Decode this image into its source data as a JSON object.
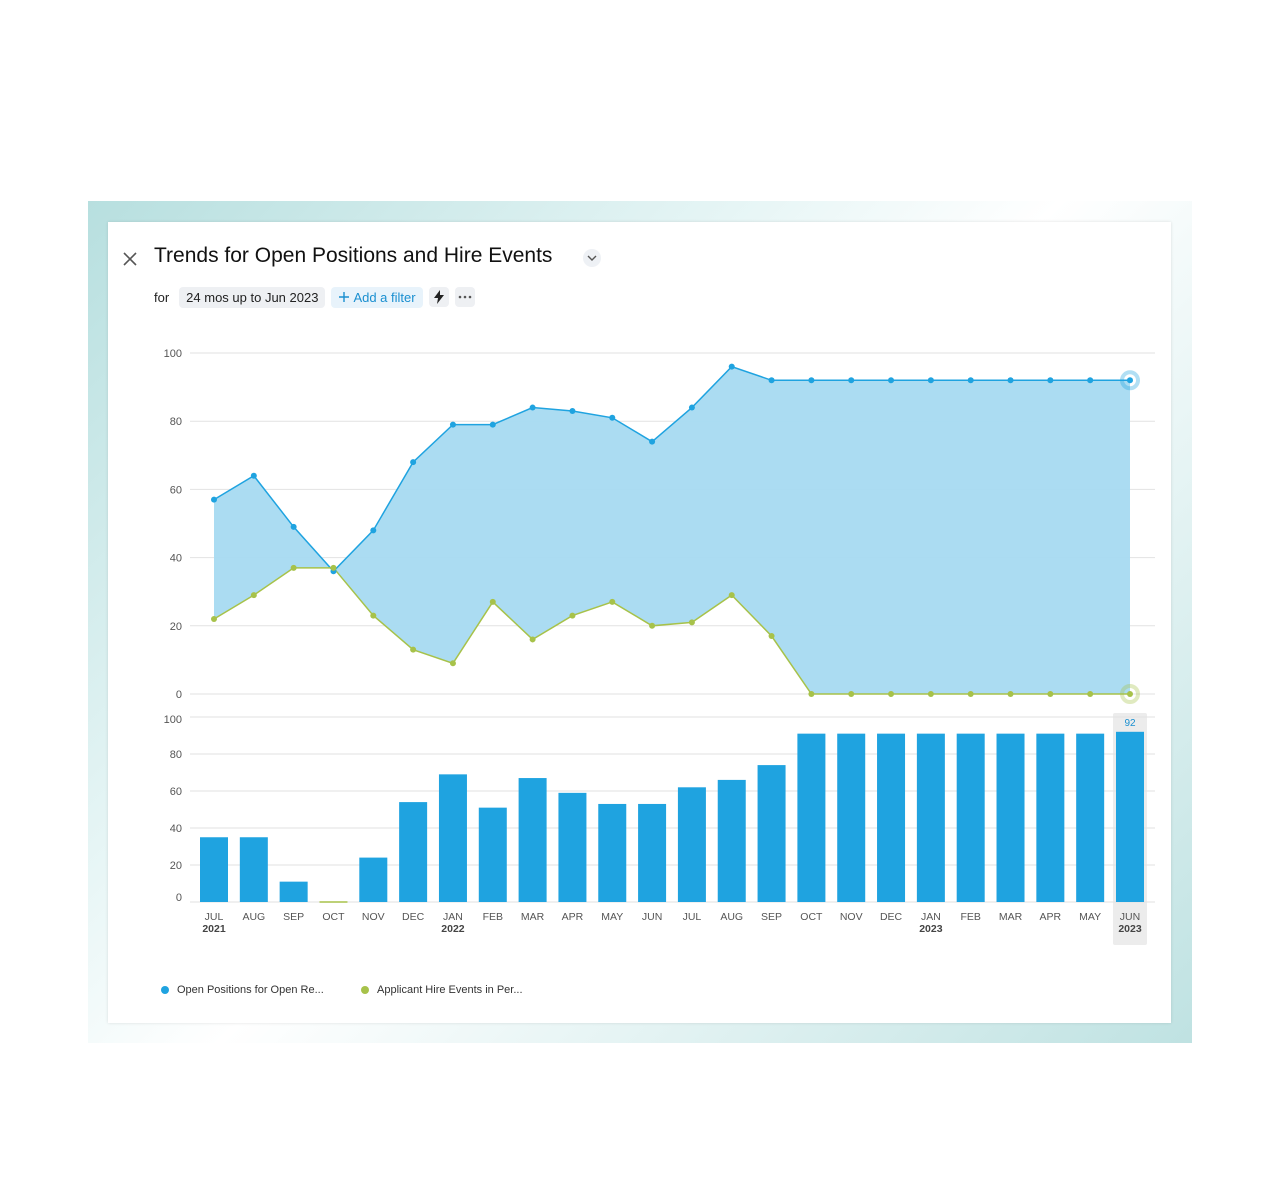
{
  "header": {
    "title": "Trends for Open Positions and Hire Events",
    "for_label": "for",
    "time_range_chip": "24 mos up to Jun 2023",
    "add_filter_label": "Add a filter",
    "icons": [
      "close-icon",
      "chevron-down-icon",
      "lightning-icon",
      "more-icon"
    ]
  },
  "colors": {
    "open_positions": "#1fa3e0",
    "hire_events": "#a7c24a",
    "area_fill": "#a6daf1",
    "bar": "#1fa3e0"
  },
  "chart_data": [
    {
      "type": "area",
      "categories": [
        "JUL",
        "AUG",
        "SEP",
        "OCT",
        "NOV",
        "DEC",
        "JAN",
        "FEB",
        "MAR",
        "APR",
        "MAY",
        "JUN",
        "JUL",
        "AUG",
        "SEP",
        "OCT",
        "NOV",
        "DEC",
        "JAN",
        "FEB",
        "MAR",
        "APR",
        "MAY",
        "JUN"
      ],
      "year_labels": {
        "0": "2021",
        "6": "2022",
        "18": "2023",
        "23": "2023"
      },
      "series": [
        {
          "name": "Open Positions for Open Re...",
          "values": [
            57,
            64,
            49,
            36,
            48,
            68,
            79,
            79,
            84,
            83,
            81,
            74,
            84,
            96,
            92,
            92,
            92,
            92,
            92,
            92,
            92,
            92,
            92,
            92
          ]
        },
        {
          "name": "Applicant Hire Events in Per...",
          "values": [
            22,
            29,
            37,
            37,
            23,
            13,
            9,
            27,
            16,
            23,
            27,
            20,
            21,
            29,
            17,
            0,
            0,
            0,
            0,
            0,
            0,
            0,
            0,
            0
          ]
        }
      ],
      "ylim": [
        0,
        100
      ],
      "yticks": [
        0,
        20,
        40,
        60,
        80,
        100
      ],
      "grid": true
    },
    {
      "type": "bar",
      "categories": [
        "JUL",
        "AUG",
        "SEP",
        "OCT",
        "NOV",
        "DEC",
        "JAN",
        "FEB",
        "MAR",
        "APR",
        "MAY",
        "JUN",
        "JUL",
        "AUG",
        "SEP",
        "OCT",
        "NOV",
        "DEC",
        "JAN",
        "FEB",
        "MAR",
        "APR",
        "MAY",
        "JUN"
      ],
      "values": [
        35,
        35,
        11,
        0,
        24,
        54,
        69,
        51,
        67,
        59,
        53,
        53,
        62,
        66,
        74,
        91,
        91,
        91,
        91,
        91,
        91,
        91,
        91,
        92
      ],
      "ylim": [
        0,
        100
      ],
      "yticks": [
        0,
        20,
        40,
        60,
        80,
        100
      ],
      "highlight_index": 23,
      "highlight_label": "92",
      "grid": true
    }
  ],
  "legend": [
    {
      "label": "Open Positions for Open Re...",
      "color": "#1fa3e0"
    },
    {
      "label": "Applicant Hire Events in Per...",
      "color": "#a7c24a"
    }
  ]
}
